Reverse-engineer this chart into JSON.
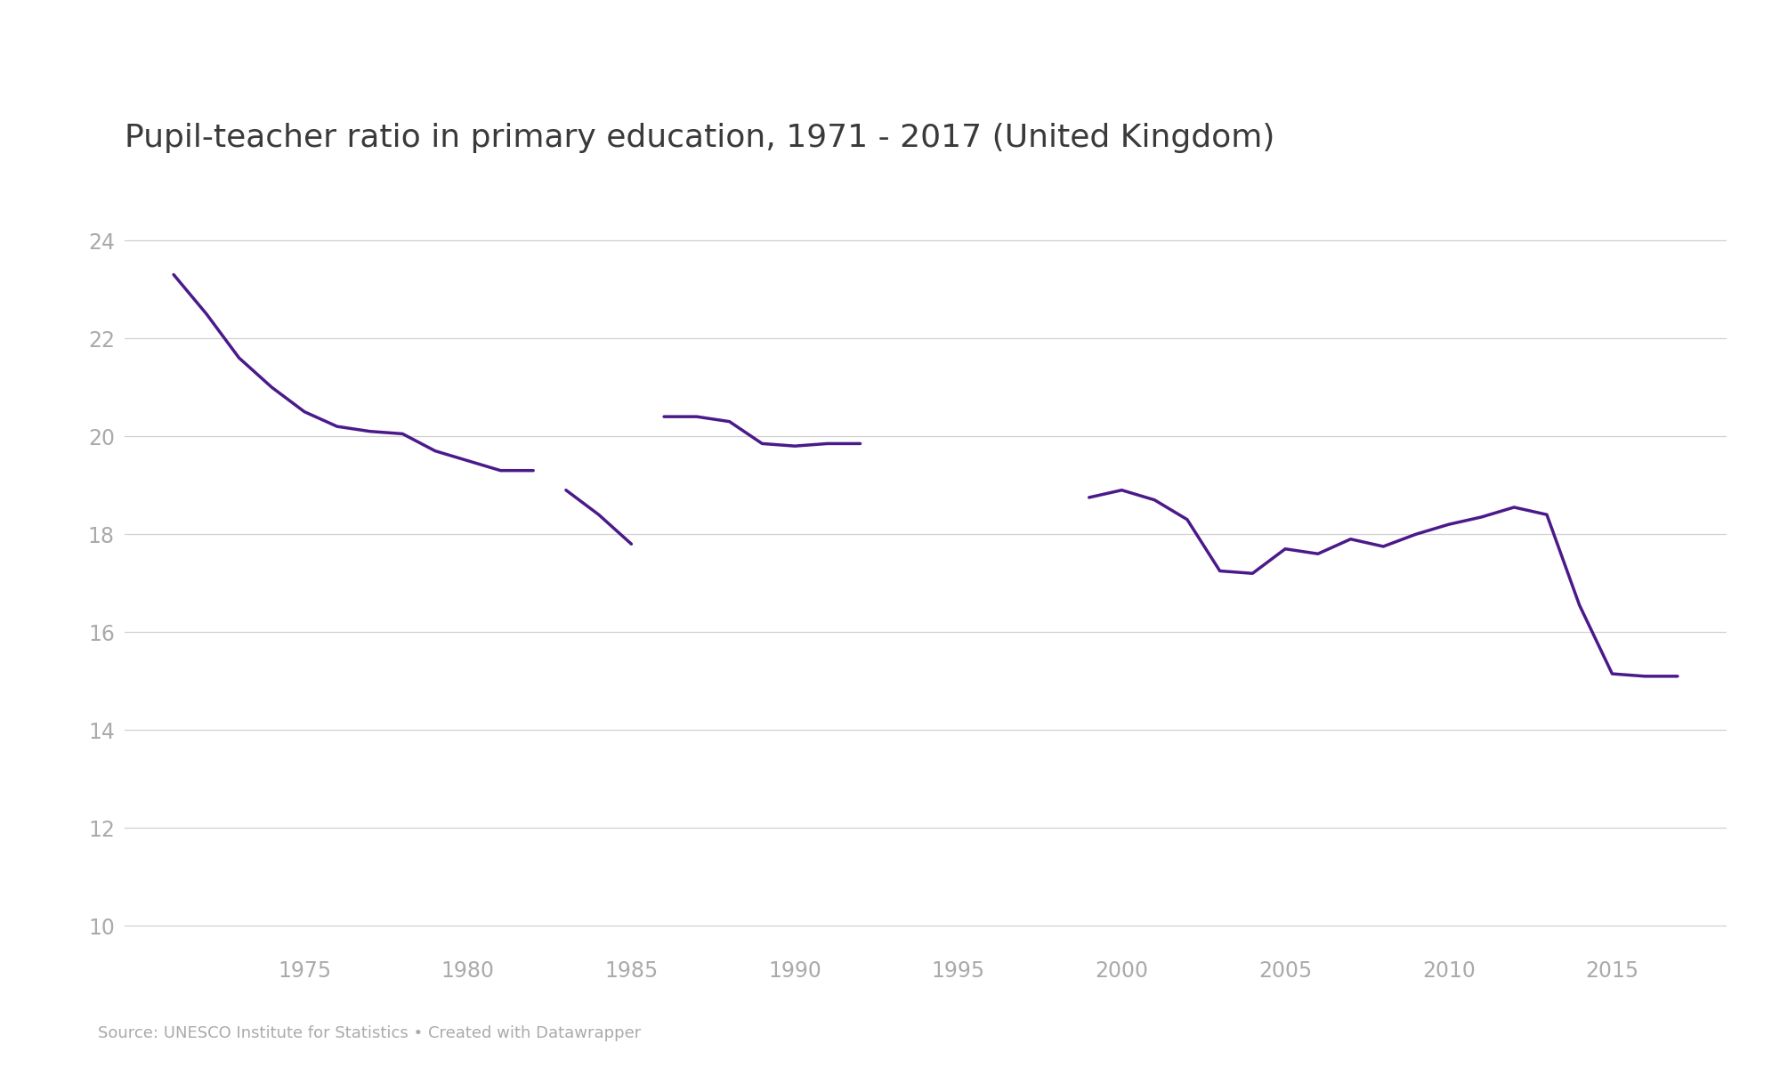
{
  "title": "Pupil-teacher ratio in primary education, 1971 - 2017 (United Kingdom)",
  "line_color": "#4b1a8a",
  "background_color": "#ffffff",
  "grid_color": "#d0d0d0",
  "tick_color": "#aaaaaa",
  "text_color": "#3a3a3a",
  "source_text": "Source: UNESCO Institute for Statistics • Created with Datawrapper",
  "ylim": [
    9.5,
    25.2
  ],
  "yticks": [
    10,
    12,
    14,
    16,
    18,
    20,
    22,
    24
  ],
  "xlim": [
    1969.5,
    2018.5
  ],
  "xticks": [
    1975,
    1980,
    1985,
    1990,
    1995,
    2000,
    2005,
    2010,
    2015
  ],
  "segments": [
    {
      "years": [
        1971,
        1972,
        1973,
        1974,
        1975,
        1976,
        1977,
        1978,
        1979,
        1980,
        1981,
        1982
      ],
      "values": [
        23.3,
        22.5,
        21.6,
        21.0,
        20.5,
        20.2,
        20.1,
        20.05,
        19.7,
        19.5,
        19.3,
        19.3
      ]
    },
    {
      "years": [
        1983,
        1984,
        1985
      ],
      "values": [
        18.9,
        18.4,
        17.8
      ]
    },
    {
      "years": [
        1986,
        1987,
        1988,
        1989,
        1990,
        1991,
        1992
      ],
      "values": [
        20.4,
        20.4,
        20.3,
        19.85,
        19.8,
        19.85,
        19.85
      ]
    },
    {
      "years": [
        1999,
        2000,
        2001,
        2002,
        2003,
        2004,
        2005,
        2006,
        2007,
        2008,
        2009,
        2010,
        2011,
        2012,
        2013,
        2014,
        2015,
        2016,
        2017
      ],
      "values": [
        18.75,
        18.9,
        18.7,
        18.3,
        17.25,
        17.2,
        17.7,
        17.6,
        17.9,
        17.75,
        18.0,
        18.2,
        18.35,
        18.55,
        18.4,
        16.55,
        15.15,
        15.1,
        15.1
      ]
    }
  ],
  "line_width": 2.5,
  "title_fontsize": 26,
  "tick_fontsize": 17,
  "source_fontsize": 13
}
